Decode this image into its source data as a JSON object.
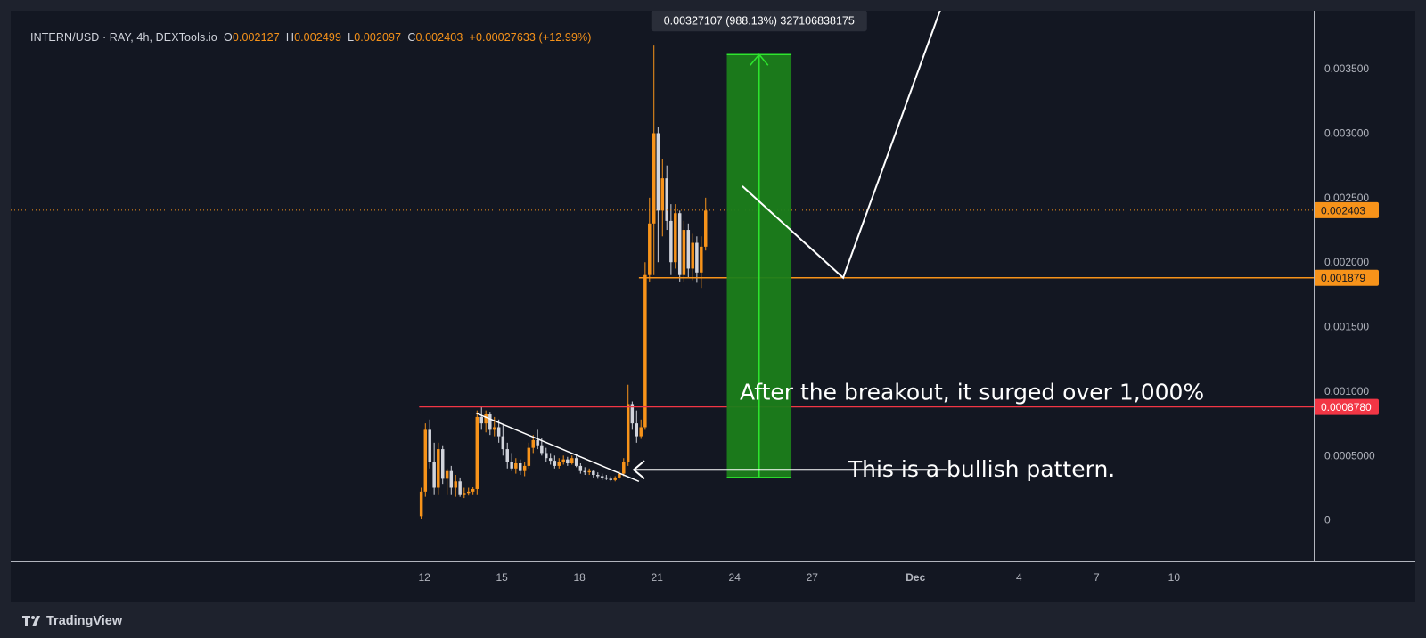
{
  "legend": {
    "symbol": "INTERN/USD · RAY, 4h, DEXTools.io",
    "open_label": "O",
    "open": "0.002127",
    "high_label": "H",
    "high": "0.002499",
    "low_label": "L",
    "low": "0.002097",
    "close_label": "C",
    "close": "0.002403",
    "change": "+0.00027633 (+12.99%)"
  },
  "brand": {
    "name": "TradingView"
  },
  "colors": {
    "background": "#131722",
    "candle_up": "#f7931a",
    "candle_down": "#d1d4dc",
    "grid": "#1e222d",
    "resistance": "#f23645",
    "support": "#f7931a",
    "target_box": "#1b7e1b",
    "target_line": "#2ee62e",
    "annotation": "#ffffff"
  },
  "chart_data": {
    "type": "candlestick",
    "instrument": "INTERN/USD",
    "timeframe": "4h",
    "y_range": [
      -0.00032,
      0.00395
    ],
    "y_ticks": [
      "0",
      "0.0005000",
      "0.001000",
      "0.001500",
      "0.002000",
      "0.002500",
      "0.003000",
      "0.003500"
    ],
    "y_tick_values": [
      0,
      0.0005,
      0.001,
      0.0015,
      0.002,
      0.0025,
      0.003,
      0.0035
    ],
    "x_ticks": [
      "12",
      "15",
      "18",
      "21",
      "24",
      "27",
      "Dec",
      "4",
      "7",
      "10"
    ],
    "x_tick_days": [
      12,
      15,
      18,
      21,
      24,
      27,
      31,
      35,
      38,
      41
    ],
    "x_tick_bold": [
      "Dec"
    ],
    "x_range_days": [
      -4,
      46.4
    ],
    "candles": [
      {
        "day": 11.88,
        "o": 3e-05,
        "h": 0.00025,
        "l": 1e-05,
        "c": 0.00022
      },
      {
        "day": 12.04,
        "o": 0.00022,
        "h": 0.00075,
        "l": 0.00018,
        "c": 0.0007
      },
      {
        "day": 12.21,
        "o": 0.0007,
        "h": 0.00078,
        "l": 0.0004,
        "c": 0.00045
      },
      {
        "day": 12.38,
        "o": 0.00045,
        "h": 0.0006,
        "l": 0.0002,
        "c": 0.00025
      },
      {
        "day": 12.54,
        "o": 0.00025,
        "h": 0.0006,
        "l": 0.0002,
        "c": 0.00055
      },
      {
        "day": 12.71,
        "o": 0.00055,
        "h": 0.00058,
        "l": 0.00028,
        "c": 0.00032
      },
      {
        "day": 12.88,
        "o": 0.00032,
        "h": 0.0004,
        "l": 0.0002,
        "c": 0.00038
      },
      {
        "day": 13.04,
        "o": 0.00038,
        "h": 0.00042,
        "l": 0.0002,
        "c": 0.00025
      },
      {
        "day": 13.21,
        "o": 0.00025,
        "h": 0.00035,
        "l": 0.00018,
        "c": 0.0003
      },
      {
        "day": 13.38,
        "o": 0.0003,
        "h": 0.00033,
        "l": 0.00018,
        "c": 0.0002
      },
      {
        "day": 13.54,
        "o": 0.0002,
        "h": 0.00025,
        "l": 0.00017,
        "c": 0.00021
      },
      {
        "day": 13.71,
        "o": 0.00021,
        "h": 0.00025,
        "l": 0.00019,
        "c": 0.00022
      },
      {
        "day": 13.88,
        "o": 0.00022,
        "h": 0.00026,
        "l": 0.0002,
        "c": 0.00024
      },
      {
        "day": 14.04,
        "o": 0.00024,
        "h": 0.00085,
        "l": 0.0002,
        "c": 0.0008
      },
      {
        "day": 14.21,
        "o": 0.0008,
        "h": 0.00088,
        "l": 0.0007,
        "c": 0.00075
      },
      {
        "day": 14.38,
        "o": 0.00075,
        "h": 0.00085,
        "l": 0.00068,
        "c": 0.00082
      },
      {
        "day": 14.54,
        "o": 0.00082,
        "h": 0.00084,
        "l": 0.00066,
        "c": 0.0007
      },
      {
        "day": 14.71,
        "o": 0.0007,
        "h": 0.0008,
        "l": 0.00065,
        "c": 0.00072
      },
      {
        "day": 14.88,
        "o": 0.00072,
        "h": 0.00078,
        "l": 0.0006,
        "c": 0.00065
      },
      {
        "day": 15.04,
        "o": 0.00065,
        "h": 0.00074,
        "l": 0.0005,
        "c": 0.00055
      },
      {
        "day": 15.21,
        "o": 0.00055,
        "h": 0.0006,
        "l": 0.0004,
        "c": 0.00045
      },
      {
        "day": 15.38,
        "o": 0.00045,
        "h": 0.00052,
        "l": 0.00038,
        "c": 0.0004
      },
      {
        "day": 15.54,
        "o": 0.0004,
        "h": 0.00048,
        "l": 0.00036,
        "c": 0.00044
      },
      {
        "day": 15.71,
        "o": 0.00044,
        "h": 0.00047,
        "l": 0.00035,
        "c": 0.00038
      },
      {
        "day": 15.88,
        "o": 0.00038,
        "h": 0.00045,
        "l": 0.00034,
        "c": 0.00042
      },
      {
        "day": 16.04,
        "o": 0.00042,
        "h": 0.0006,
        "l": 0.0004,
        "c": 0.00056
      },
      {
        "day": 16.21,
        "o": 0.00056,
        "h": 0.00066,
        "l": 0.00052,
        "c": 0.00062
      },
      {
        "day": 16.38,
        "o": 0.00062,
        "h": 0.0007,
        "l": 0.00055,
        "c": 0.00058
      },
      {
        "day": 16.54,
        "o": 0.00058,
        "h": 0.00064,
        "l": 0.0005,
        "c": 0.00052
      },
      {
        "day": 16.71,
        "o": 0.00052,
        "h": 0.00056,
        "l": 0.00045,
        "c": 0.00048
      },
      {
        "day": 16.88,
        "o": 0.00048,
        "h": 0.00052,
        "l": 0.00043,
        "c": 0.00046
      },
      {
        "day": 17.04,
        "o": 0.00046,
        "h": 0.0005,
        "l": 0.0004,
        "c": 0.00042
      },
      {
        "day": 17.21,
        "o": 0.00042,
        "h": 0.00048,
        "l": 0.0004,
        "c": 0.00045
      },
      {
        "day": 17.38,
        "o": 0.00045,
        "h": 0.0005,
        "l": 0.00043,
        "c": 0.00047
      },
      {
        "day": 17.54,
        "o": 0.00047,
        "h": 0.00049,
        "l": 0.00042,
        "c": 0.00044
      },
      {
        "day": 17.71,
        "o": 0.00044,
        "h": 0.0005,
        "l": 0.00043,
        "c": 0.00048
      },
      {
        "day": 17.88,
        "o": 0.00048,
        "h": 0.0005,
        "l": 0.00041,
        "c": 0.00042
      },
      {
        "day": 18.04,
        "o": 0.00042,
        "h": 0.00044,
        "l": 0.00036,
        "c": 0.00038
      },
      {
        "day": 18.21,
        "o": 0.00038,
        "h": 0.00041,
        "l": 0.00035,
        "c": 0.00037
      },
      {
        "day": 18.38,
        "o": 0.00037,
        "h": 0.0004,
        "l": 0.00035,
        "c": 0.00038
      },
      {
        "day": 18.54,
        "o": 0.00038,
        "h": 0.00039,
        "l": 0.00033,
        "c": 0.00035
      },
      {
        "day": 18.71,
        "o": 0.00035,
        "h": 0.00037,
        "l": 0.00032,
        "c": 0.00034
      },
      {
        "day": 18.88,
        "o": 0.00034,
        "h": 0.00036,
        "l": 0.00031,
        "c": 0.00033
      },
      {
        "day": 19.04,
        "o": 0.00033,
        "h": 0.00035,
        "l": 0.00031,
        "c": 0.00032
      },
      {
        "day": 19.21,
        "o": 0.00032,
        "h": 0.00034,
        "l": 0.0003,
        "c": 0.00031
      },
      {
        "day": 19.38,
        "o": 0.00031,
        "h": 0.00034,
        "l": 0.0003,
        "c": 0.00033
      },
      {
        "day": 19.54,
        "o": 0.00033,
        "h": 0.00038,
        "l": 0.00032,
        "c": 0.00036
      },
      {
        "day": 19.71,
        "o": 0.00036,
        "h": 0.00048,
        "l": 0.00034,
        "c": 0.00045
      },
      {
        "day": 19.88,
        "o": 0.00045,
        "h": 0.00105,
        "l": 0.00042,
        "c": 0.0009
      },
      {
        "day": 20.04,
        "o": 0.0009,
        "h": 0.00092,
        "l": 0.0007,
        "c": 0.00075
      },
      {
        "day": 20.21,
        "o": 0.00075,
        "h": 0.00085,
        "l": 0.0006,
        "c": 0.00065
      },
      {
        "day": 20.38,
        "o": 0.00065,
        "h": 0.00078,
        "l": 0.00063,
        "c": 0.00072
      },
      {
        "day": 20.54,
        "o": 0.00072,
        "h": 0.002,
        "l": 0.0007,
        "c": 0.0019
      },
      {
        "day": 20.71,
        "o": 0.0019,
        "h": 0.0025,
        "l": 0.00185,
        "c": 0.0023
      },
      {
        "day": 20.88,
        "o": 0.0023,
        "h": 0.00368,
        "l": 0.0019,
        "c": 0.003
      },
      {
        "day": 21.04,
        "o": 0.003,
        "h": 0.00305,
        "l": 0.002,
        "c": 0.0024
      },
      {
        "day": 21.21,
        "o": 0.0024,
        "h": 0.0028,
        "l": 0.0022,
        "c": 0.00265
      },
      {
        "day": 21.38,
        "o": 0.00265,
        "h": 0.00275,
        "l": 0.00225,
        "c": 0.00232
      },
      {
        "day": 21.54,
        "o": 0.00232,
        "h": 0.00245,
        "l": 0.0019,
        "c": 0.002
      },
      {
        "day": 21.71,
        "o": 0.002,
        "h": 0.00245,
        "l": 0.00195,
        "c": 0.00238
      },
      {
        "day": 21.88,
        "o": 0.00238,
        "h": 0.0024,
        "l": 0.00185,
        "c": 0.0019
      },
      {
        "day": 22.04,
        "o": 0.0019,
        "h": 0.00232,
        "l": 0.00185,
        "c": 0.00225
      },
      {
        "day": 22.21,
        "o": 0.00225,
        "h": 0.0023,
        "l": 0.00188,
        "c": 0.00195
      },
      {
        "day": 22.38,
        "o": 0.00195,
        "h": 0.00222,
        "l": 0.00186,
        "c": 0.00215
      },
      {
        "day": 22.54,
        "o": 0.00215,
        "h": 0.0022,
        "l": 0.00184,
        "c": 0.00192
      },
      {
        "day": 22.71,
        "o": 0.00192,
        "h": 0.0022,
        "l": 0.0018,
        "c": 0.00212
      },
      {
        "day": 22.88,
        "o": 0.00212,
        "h": 0.0025,
        "l": 0.00209,
        "c": 0.0024
      }
    ],
    "current_price_line": {
      "value": 0.002403,
      "label": "0.002403"
    },
    "support_line": {
      "value": 0.001879,
      "label": "0.001879",
      "from_day": 20.3
    },
    "resistance_line": {
      "value": 0.000878,
      "label": "0.0008780",
      "from_day": 11.8
    },
    "trendline": {
      "from": {
        "day": 14.0,
        "value": 0.00083
      },
      "to": {
        "day": 20.3,
        "value": 0.0003
      }
    },
    "measure_box": {
      "from_day": 23.7,
      "to_day": 26.2,
      "low": 0.00033,
      "high": 0.00361,
      "label": "0.00327107 (988.13%) 327106838175"
    },
    "projection_path": [
      {
        "day": 24.3,
        "value": 0.00259
      },
      {
        "day": 28.2,
        "value": 0.001879
      },
      {
        "day": 32.0,
        "value": 0.00398
      }
    ],
    "annotation_arrow": {
      "from_day": 32.2,
      "to_day": 20.1,
      "value": 0.00039
    },
    "annotations": [
      {
        "text": "After the breakout, it surged over 1,000%",
        "day": 24.2,
        "value": 0.000995
      },
      {
        "text": "This is a bullish pattern.",
        "day": 28.4,
        "value": 0.0004
      }
    ]
  }
}
